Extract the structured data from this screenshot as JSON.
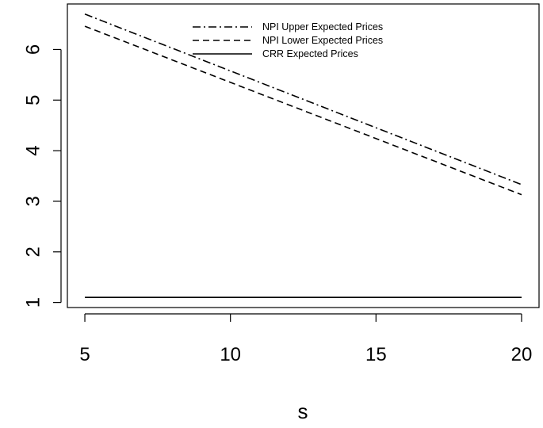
{
  "chart_data": {
    "type": "line",
    "title": "",
    "xlabel": "s",
    "ylabel": "",
    "xlim": [
      4.4,
      20.6
    ],
    "ylim": [
      0.9,
      6.9
    ],
    "x_ticks": [
      5,
      10,
      15,
      20
    ],
    "y_ticks": [
      1,
      2,
      3,
      4,
      5,
      6
    ],
    "grid": false,
    "legend_position": "top-center",
    "x": [
      5,
      20
    ],
    "series": [
      {
        "name": "NPI Upper Expected Prices",
        "line_style": "dashdot",
        "color": "#000000",
        "values": [
          6.7,
          3.33
        ]
      },
      {
        "name": "NPI Lower Expected Prices",
        "line_style": "dashed",
        "color": "#000000",
        "values": [
          6.46,
          3.13
        ]
      },
      {
        "name": "CRR Expected Prices",
        "line_style": "solid",
        "color": "#000000",
        "values": [
          1.1,
          1.1
        ]
      }
    ]
  }
}
